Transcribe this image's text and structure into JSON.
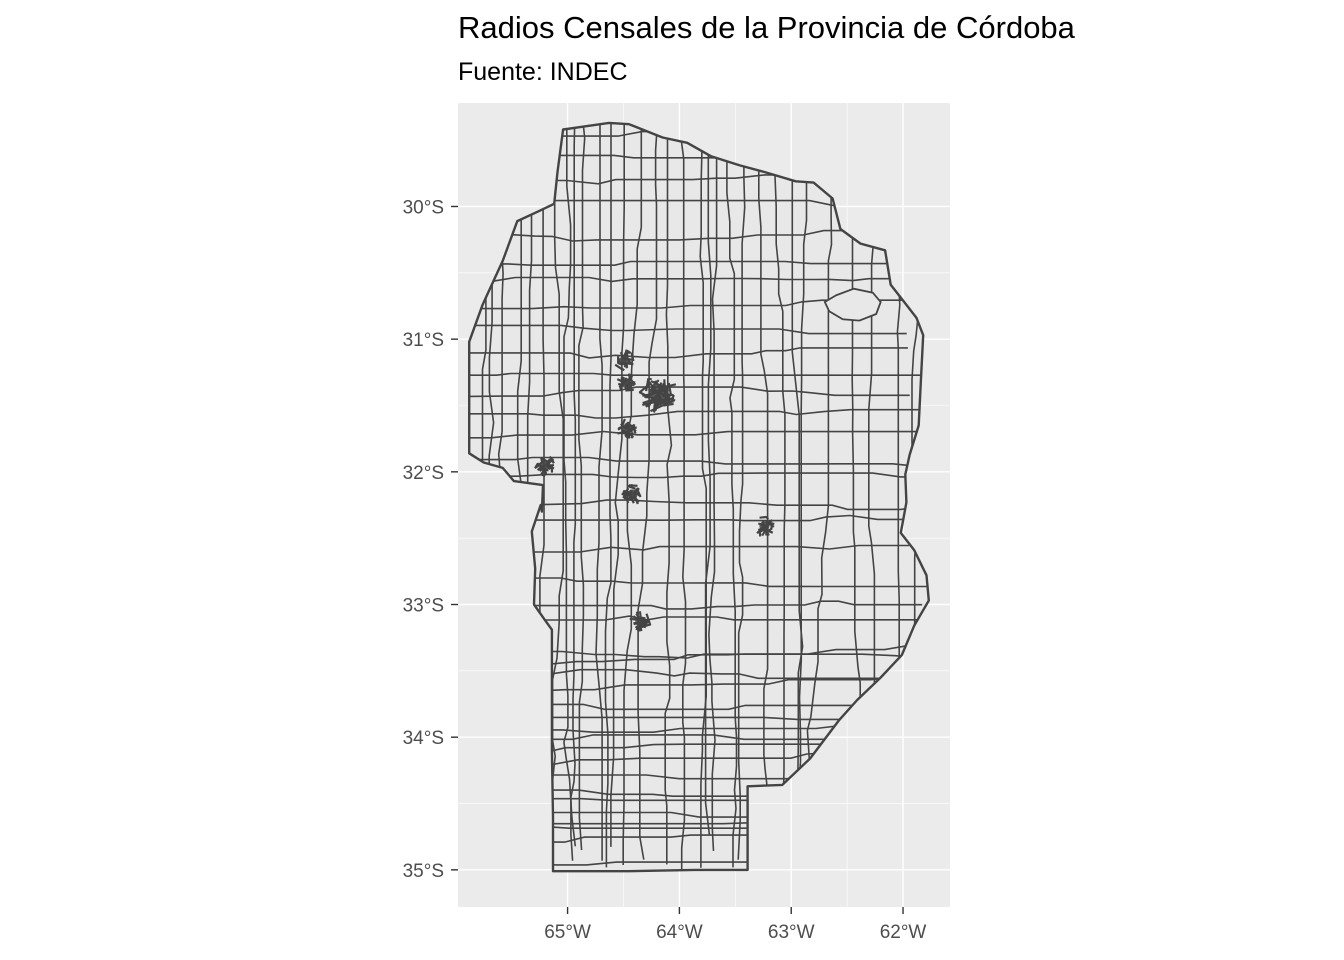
{
  "title": "Radios Censales de la Provincia de Córdoba",
  "subtitle": "Fuente: INDEC",
  "chart_data": {
    "type": "choropleth-map",
    "title": "Radios Censales de la Provincia de Córdoba",
    "subtitle": "Fuente: INDEC",
    "xlabel": "",
    "ylabel": "",
    "x_ticks": [
      {
        "value": -65,
        "label": "65°W"
      },
      {
        "value": -64,
        "label": "64°W"
      },
      {
        "value": -63,
        "label": "63°W"
      },
      {
        "value": -62,
        "label": "62°W"
      }
    ],
    "y_ticks": [
      {
        "value": -30,
        "label": "30°S"
      },
      {
        "value": -31,
        "label": "31°S"
      },
      {
        "value": -32,
        "label": "32°S"
      },
      {
        "value": -33,
        "label": "33°S"
      },
      {
        "value": -34,
        "label": "34°S"
      },
      {
        "value": -35,
        "label": "35°S"
      }
    ],
    "xlim": [
      -65.98,
      -61.58
    ],
    "ylim": [
      -35.28,
      -29.22
    ],
    "fill_color": "#e8e8e8",
    "border_color": "#444444",
    "panel_color": "#ebebeb",
    "grid_color": "#ffffff",
    "boundary_lonlat": [
      [
        -65.04,
        -29.42
      ],
      [
        -64.63,
        -29.37
      ],
      [
        -64.45,
        -29.38
      ],
      [
        -64.15,
        -29.48
      ],
      [
        -63.93,
        -29.52
      ],
      [
        -63.72,
        -29.62
      ],
      [
        -63.46,
        -29.69
      ],
      [
        -63.24,
        -29.74
      ],
      [
        -62.96,
        -29.81
      ],
      [
        -62.8,
        -29.82
      ],
      [
        -62.63,
        -29.94
      ],
      [
        -62.56,
        -30.17
      ],
      [
        -62.38,
        -30.28
      ],
      [
        -62.16,
        -30.33
      ],
      [
        -62.11,
        -30.59
      ],
      [
        -61.99,
        -30.72
      ],
      [
        -61.88,
        -30.84
      ],
      [
        -61.82,
        -30.97
      ],
      [
        -61.84,
        -31.31
      ],
      [
        -61.86,
        -31.65
      ],
      [
        -61.94,
        -31.87
      ],
      [
        -61.98,
        -32.02
      ],
      [
        -61.97,
        -32.23
      ],
      [
        -62.02,
        -32.46
      ],
      [
        -61.9,
        -32.59
      ],
      [
        -61.79,
        -32.78
      ],
      [
        -61.77,
        -32.97
      ],
      [
        -61.9,
        -33.16
      ],
      [
        -62.01,
        -33.38
      ],
      [
        -62.2,
        -33.55
      ],
      [
        -62.41,
        -33.72
      ],
      [
        -62.57,
        -33.87
      ],
      [
        -62.83,
        -34.16
      ],
      [
        -63.08,
        -34.36
      ],
      [
        -63.39,
        -34.37
      ],
      [
        -63.39,
        -34.54
      ],
      [
        -63.39,
        -34.82
      ],
      [
        -63.39,
        -35.0
      ],
      [
        -63.86,
        -35.0
      ],
      [
        -64.45,
        -35.01
      ],
      [
        -64.99,
        -35.01
      ],
      [
        -65.13,
        -35.01
      ],
      [
        -65.13,
        -34.6
      ],
      [
        -65.14,
        -34.1
      ],
      [
        -65.14,
        -33.5
      ],
      [
        -65.14,
        -33.19
      ],
      [
        -65.2,
        -33.12
      ],
      [
        -65.3,
        -33.0
      ],
      [
        -65.29,
        -32.73
      ],
      [
        -65.32,
        -32.45
      ],
      [
        -65.24,
        -32.25
      ],
      [
        -65.23,
        -32.3
      ],
      [
        -65.22,
        -32.1
      ],
      [
        -65.48,
        -32.07
      ],
      [
        -65.58,
        -31.97
      ],
      [
        -65.75,
        -31.93
      ],
      [
        -65.88,
        -31.86
      ],
      [
        -65.88,
        -31.52
      ],
      [
        -65.88,
        -31.02
      ],
      [
        -65.76,
        -30.74
      ],
      [
        -65.58,
        -30.41
      ],
      [
        -65.45,
        -30.11
      ],
      [
        -65.27,
        -30.04
      ],
      [
        -65.12,
        -29.98
      ],
      [
        -65.09,
        -29.74
      ]
    ],
    "inner_lake_lonlat": [
      [
        -62.6,
        -30.67
      ],
      [
        -62.44,
        -30.62
      ],
      [
        -62.27,
        -30.65
      ],
      [
        -62.2,
        -30.72
      ],
      [
        -62.24,
        -30.81
      ],
      [
        -62.39,
        -30.86
      ],
      [
        -62.54,
        -30.85
      ],
      [
        -62.66,
        -30.79
      ],
      [
        -62.7,
        -30.72
      ]
    ],
    "urban_clusters_lonlat": [
      {
        "lon": -64.19,
        "lat": -31.41
      },
      {
        "lon": -64.48,
        "lat": -31.33
      },
      {
        "lon": -64.49,
        "lat": -31.16
      },
      {
        "lon": -64.47,
        "lat": -31.68
      },
      {
        "lon": -65.2,
        "lat": -31.95
      },
      {
        "lon": -64.35,
        "lat": -33.13
      },
      {
        "lon": -63.24,
        "lat": -32.41
      },
      {
        "lon": -64.42,
        "lat": -32.17
      }
    ]
  }
}
